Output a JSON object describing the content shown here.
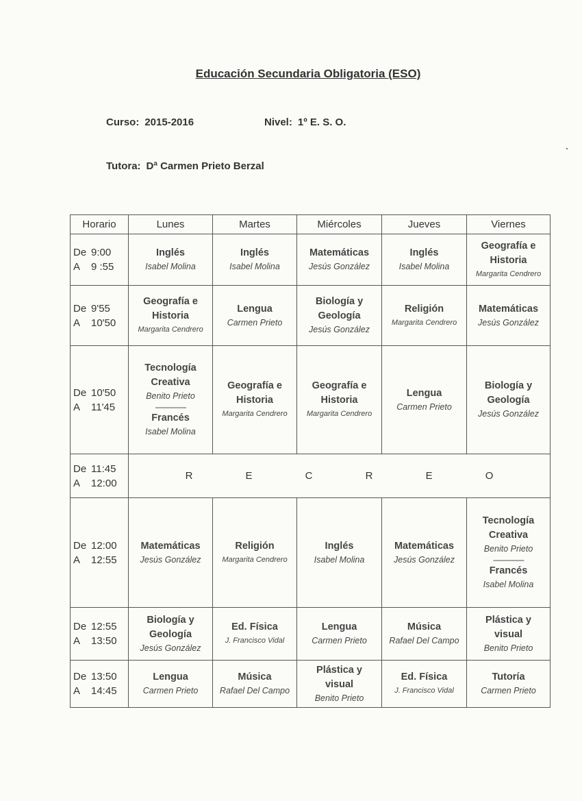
{
  "title": "Educación Secundaria Obligatoria (ESO)",
  "curso": {
    "label": "Curso:",
    "value": "2015-2016"
  },
  "nivel": {
    "label": "Nivel:",
    "value": "1º  E. S. O."
  },
  "tutora": {
    "label": "Tutora:",
    "value": "Dª Carmen Prieto Berzal"
  },
  "schedule": {
    "headers": [
      "Horario",
      "Lunes",
      "Martes",
      "Miércoles",
      "Jueves",
      "Viernes"
    ],
    "from_label": "De",
    "to_label": "A",
    "separator": "---------------",
    "break_label": "RECREO",
    "rows": [
      {
        "from": "9:00",
        "to": "9 :55",
        "cells": [
          [
            {
              "subject": "Inglés",
              "teacher": "Isabel Molina"
            }
          ],
          [
            {
              "subject": "Inglés",
              "teacher": "Isabel Molina"
            }
          ],
          [
            {
              "subject": "Matemáticas",
              "teacher": "Jesús González"
            }
          ],
          [
            {
              "subject": "Inglés",
              "teacher": "Isabel Molina"
            }
          ],
          [
            {
              "subject": "Geografía e\nHistoria",
              "teacher": "Margarita Cendrero"
            }
          ]
        ]
      },
      {
        "from": "9'55",
        "to": "10'50",
        "cells": [
          [
            {
              "subject": "Geografía e\nHistoria",
              "teacher": "Margarita Cendrero"
            }
          ],
          [
            {
              "subject": "Lengua",
              "teacher": "Carmen Prieto"
            }
          ],
          [
            {
              "subject": "Biología y\nGeología",
              "teacher": "Jesús González"
            }
          ],
          [
            {
              "subject": "Religión",
              "teacher": "Margarita Cendrero"
            }
          ],
          [
            {
              "subject": "Matemáticas",
              "teacher": "Jesús González"
            }
          ]
        ]
      },
      {
        "from": "10'50",
        "to": "11'45",
        "cells": [
          [
            {
              "subject": "Tecnología\nCreativa",
              "teacher": "Benito Prieto"
            },
            {
              "subject": "Francés",
              "teacher": "Isabel Molina"
            }
          ],
          [
            {
              "subject": "Geografía e\nHistoria",
              "teacher": "Margarita Cendrero"
            }
          ],
          [
            {
              "subject": "Geografía e\nHistoria",
              "teacher": "Margarita Cendrero"
            }
          ],
          [
            {
              "subject": "Lengua",
              "teacher": "Carmen Prieto"
            }
          ],
          [
            {
              "subject": "Biología y\nGeología",
              "teacher": "Jesús González"
            }
          ]
        ]
      },
      {
        "from": "11:45",
        "to": "12:00",
        "break": true
      },
      {
        "from": "12:00",
        "to": "12:55",
        "cells": [
          [
            {
              "subject": "Matemáticas",
              "teacher": "Jesús González"
            }
          ],
          [
            {
              "subject": "Religión",
              "teacher": "Margarita Cendrero"
            }
          ],
          [
            {
              "subject": "Inglés",
              "teacher": "Isabel Molina"
            }
          ],
          [
            {
              "subject": "Matemáticas",
              "teacher": "Jesús González"
            }
          ],
          [
            {
              "subject": "Tecnología\nCreativa",
              "teacher": "Benito Prieto"
            },
            {
              "subject": "Francés",
              "teacher": "Isabel Molina"
            }
          ]
        ]
      },
      {
        "from": "12:55",
        "to": "13:50",
        "cells": [
          [
            {
              "subject": "Biología y\nGeología",
              "teacher": "Jesús González"
            }
          ],
          [
            {
              "subject": "Ed. Física",
              "teacher": "J. Francisco Vidal"
            }
          ],
          [
            {
              "subject": "Lengua",
              "teacher": "Carmen Prieto"
            }
          ],
          [
            {
              "subject": "Música",
              "teacher": "Rafael Del Campo"
            }
          ],
          [
            {
              "subject": "Plástica y\nvisual",
              "teacher": "Benito Prieto"
            }
          ]
        ]
      },
      {
        "from": "13:50",
        "to": "14:45",
        "cells": [
          [
            {
              "subject": "Lengua",
              "teacher": "Carmen Prieto"
            }
          ],
          [
            {
              "subject": "Música",
              "teacher": "Rafael Del Campo"
            }
          ],
          [
            {
              "subject": "Plástica y\nvisual",
              "teacher": "Benito Prieto"
            }
          ],
          [
            {
              "subject": "Ed. Física",
              "teacher": "J. Francisco Vidal"
            }
          ],
          [
            {
              "subject": "Tutoría",
              "teacher": "Carmen Prieto"
            }
          ]
        ]
      }
    ]
  }
}
